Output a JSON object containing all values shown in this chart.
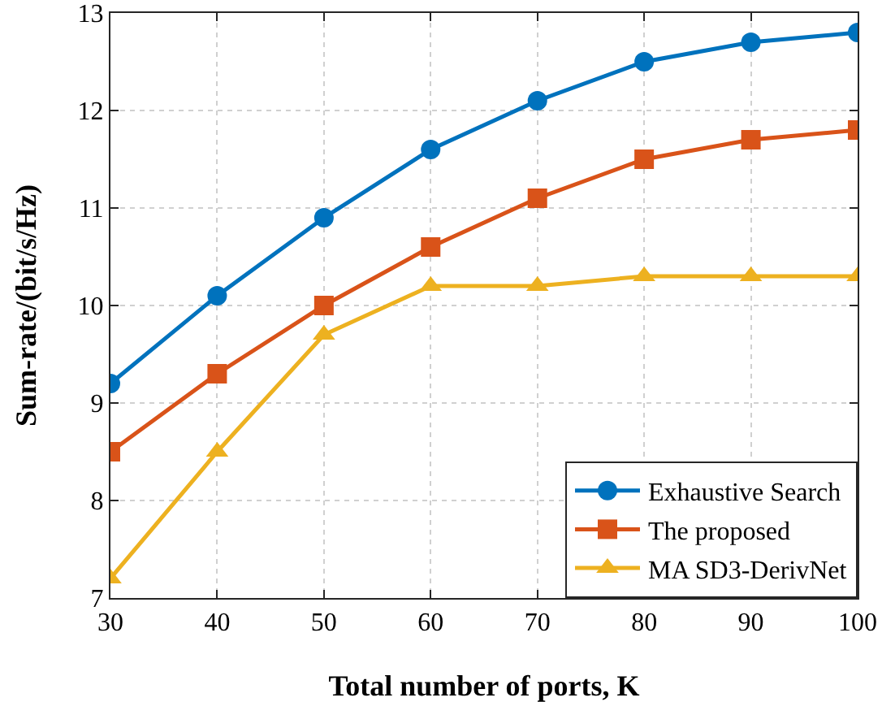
{
  "chart_data": {
    "type": "line",
    "xlabel": "Total number of ports, K",
    "ylabel": "Sum-rate/(bit/s/Hz)",
    "x": [
      30,
      40,
      50,
      60,
      70,
      80,
      90,
      100
    ],
    "series": [
      {
        "name": "Exhaustive Search",
        "color": "#0072bd",
        "marker": "circle",
        "values": [
          9.2,
          10.1,
          10.9,
          11.6,
          12.1,
          12.5,
          12.7,
          12.8
        ]
      },
      {
        "name": "The proposed",
        "color": "#d95319",
        "marker": "square",
        "values": [
          8.5,
          9.3,
          10.0,
          10.6,
          11.1,
          11.5,
          11.7,
          11.8
        ]
      },
      {
        "name": "MA SD3-DerivNet",
        "color": "#edb120",
        "marker": "triangle",
        "values": [
          7.2,
          8.5,
          9.7,
          10.2,
          10.2,
          10.3,
          10.3,
          10.3
        ]
      }
    ],
    "xlim": [
      30,
      100
    ],
    "xticks": [
      30,
      40,
      50,
      60,
      70,
      80,
      90,
      100
    ],
    "ylim": [
      7,
      13
    ],
    "yticks": [
      7,
      8,
      9,
      10,
      11,
      12,
      13
    ],
    "grid": true,
    "legend": "bottom right",
    "line_style": "solid"
  }
}
